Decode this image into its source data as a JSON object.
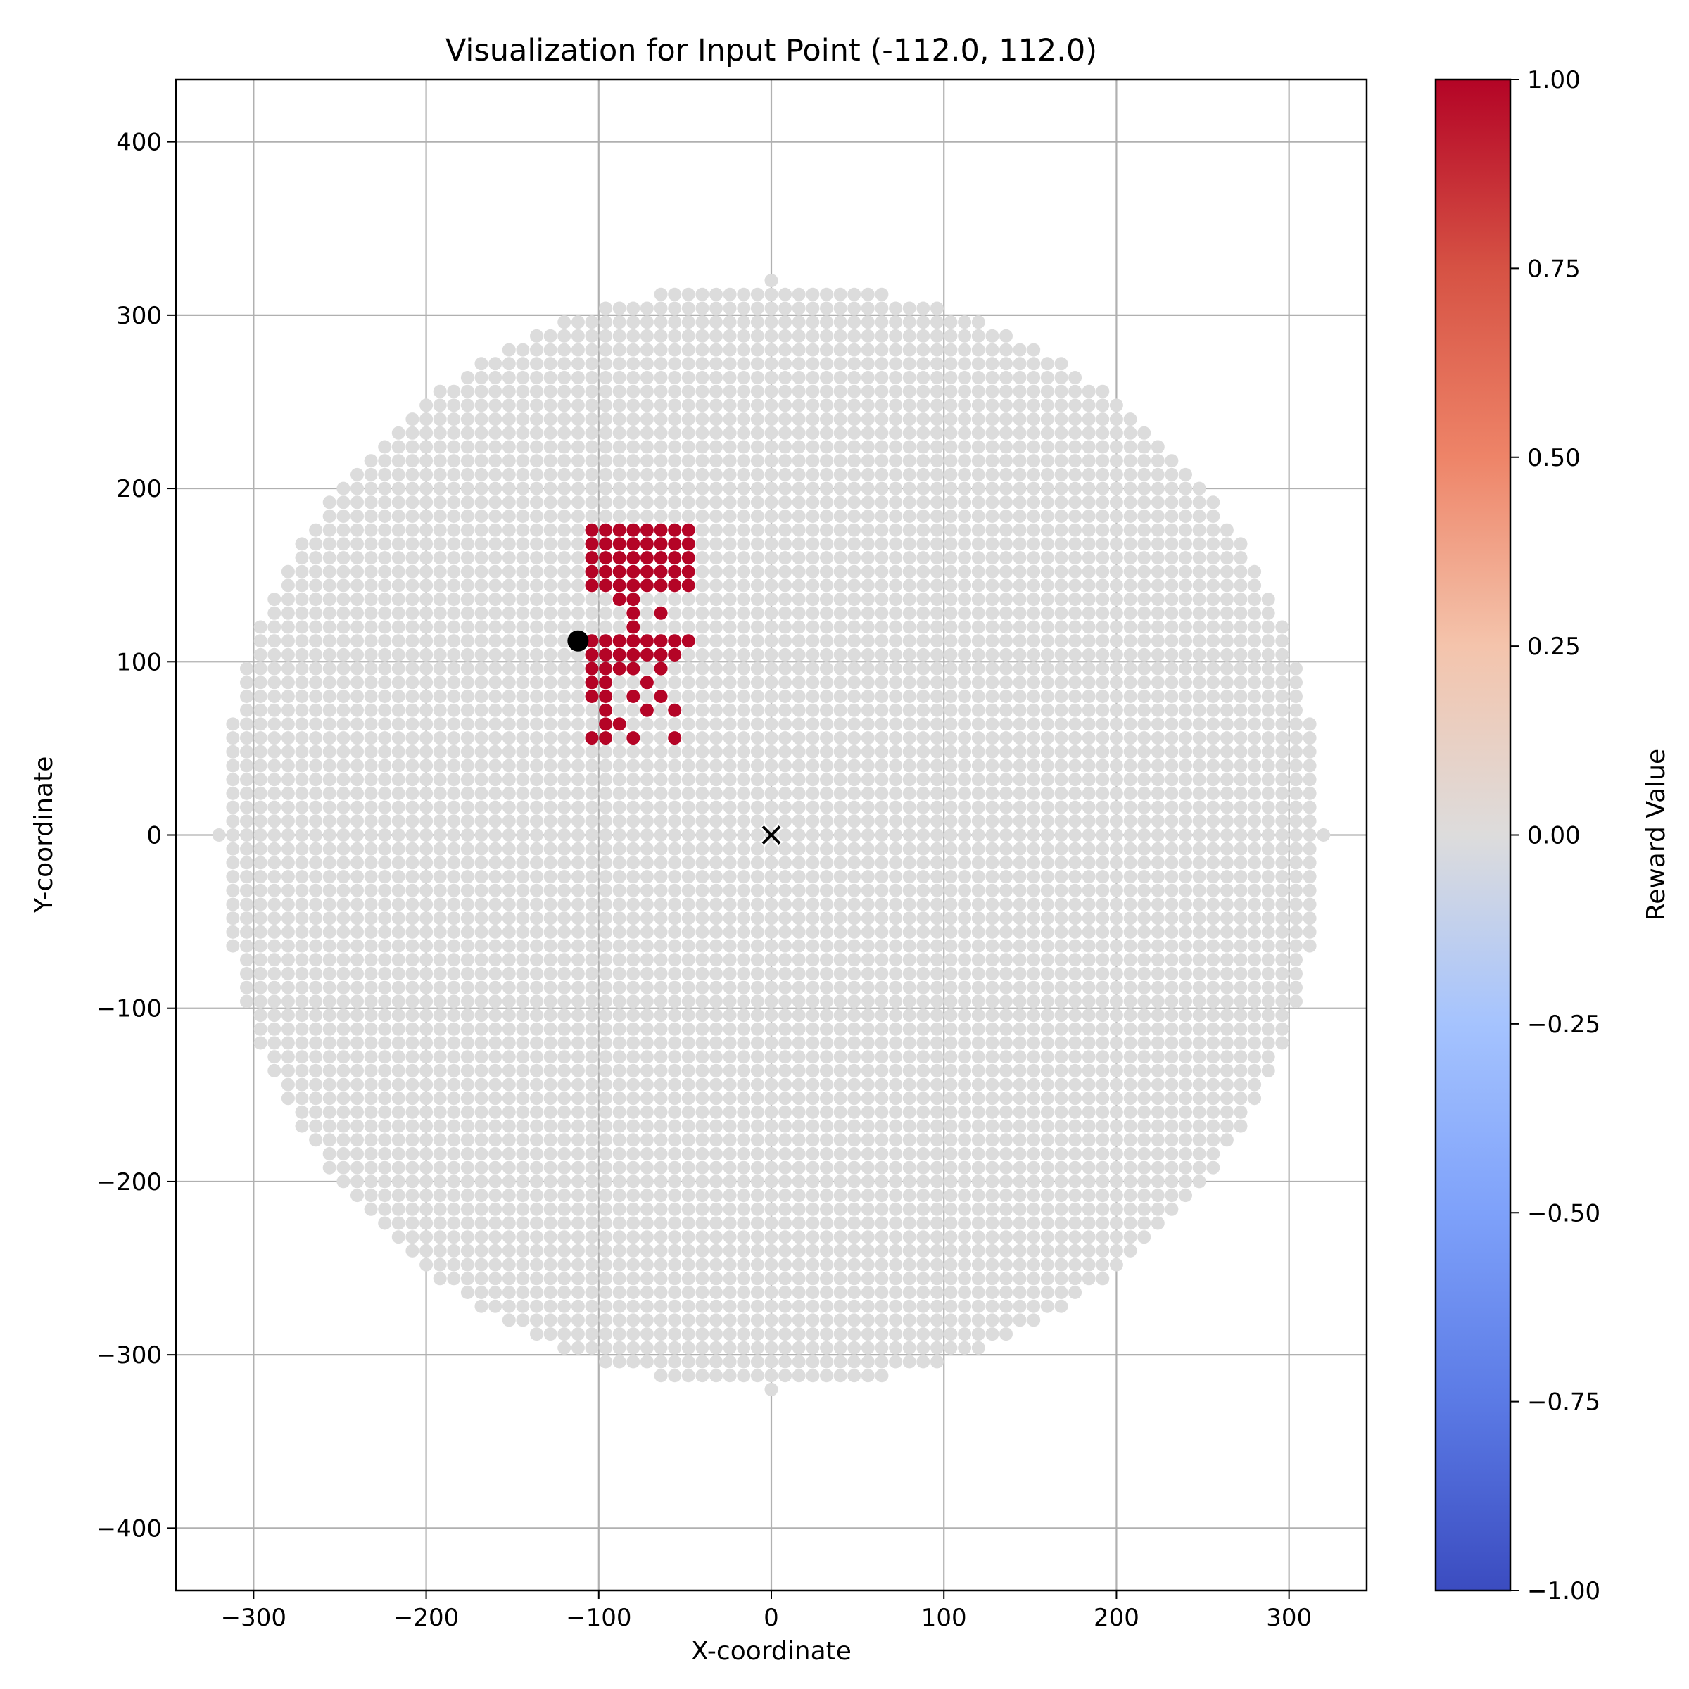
{
  "chart_data": {
    "type": "scatter",
    "title": "Visualization for Input Point (-112.0, 112.0)",
    "xlabel": "X-coordinate",
    "ylabel": "Y-coordinate",
    "xlim": [
      -345,
      345
    ],
    "ylim": [
      -436,
      436
    ],
    "x_ticks": [
      -300,
      -200,
      -100,
      0,
      100,
      200,
      300
    ],
    "y_ticks": [
      -400,
      -300,
      -200,
      -100,
      0,
      100,
      200,
      300,
      400
    ],
    "x_tick_labels": [
      "−300",
      "−200",
      "−100",
      "0",
      "100",
      "200",
      "300"
    ],
    "y_tick_labels": [
      "−400",
      "−300",
      "−200",
      "−100",
      "0",
      "100",
      "200",
      "300",
      "400"
    ],
    "grid": true,
    "grid_points": {
      "description_value": "reward 0 for all grid points inside the disc except the highlighted region",
      "step": 8,
      "radius": 320,
      "reward": 0.0,
      "color": "#dcdcdc"
    },
    "highlight_points": {
      "reward": 1.0,
      "color": "#b40426",
      "points": [
        [
          -104,
          176
        ],
        [
          -96,
          176
        ],
        [
          -88,
          176
        ],
        [
          -80,
          176
        ],
        [
          -72,
          176
        ],
        [
          -64,
          176
        ],
        [
          -56,
          176
        ],
        [
          -48,
          176
        ],
        [
          -104,
          168
        ],
        [
          -96,
          168
        ],
        [
          -88,
          168
        ],
        [
          -80,
          168
        ],
        [
          -72,
          168
        ],
        [
          -64,
          168
        ],
        [
          -56,
          168
        ],
        [
          -48,
          168
        ],
        [
          -104,
          160
        ],
        [
          -96,
          160
        ],
        [
          -88,
          160
        ],
        [
          -80,
          160
        ],
        [
          -72,
          160
        ],
        [
          -64,
          160
        ],
        [
          -56,
          160
        ],
        [
          -48,
          160
        ],
        [
          -104,
          152
        ],
        [
          -96,
          152
        ],
        [
          -88,
          152
        ],
        [
          -80,
          152
        ],
        [
          -72,
          152
        ],
        [
          -64,
          152
        ],
        [
          -56,
          152
        ],
        [
          -48,
          152
        ],
        [
          -104,
          144
        ],
        [
          -96,
          144
        ],
        [
          -88,
          144
        ],
        [
          -80,
          144
        ],
        [
          -72,
          144
        ],
        [
          -64,
          144
        ],
        [
          -56,
          144
        ],
        [
          -48,
          144
        ],
        [
          -88,
          136
        ],
        [
          -80,
          136
        ],
        [
          -80,
          128
        ],
        [
          -64,
          128
        ],
        [
          -80,
          120
        ],
        [
          -104,
          112
        ],
        [
          -96,
          112
        ],
        [
          -88,
          112
        ],
        [
          -80,
          112
        ],
        [
          -72,
          112
        ],
        [
          -64,
          112
        ],
        [
          -56,
          112
        ],
        [
          -48,
          112
        ],
        [
          -104,
          104
        ],
        [
          -96,
          104
        ],
        [
          -88,
          104
        ],
        [
          -80,
          104
        ],
        [
          -72,
          104
        ],
        [
          -64,
          104
        ],
        [
          -56,
          104
        ],
        [
          -104,
          96
        ],
        [
          -96,
          96
        ],
        [
          -88,
          96
        ],
        [
          -80,
          96
        ],
        [
          -64,
          96
        ],
        [
          -104,
          88
        ],
        [
          -96,
          88
        ],
        [
          -72,
          88
        ],
        [
          -104,
          80
        ],
        [
          -96,
          80
        ],
        [
          -80,
          80
        ],
        [
          -64,
          80
        ],
        [
          -96,
          72
        ],
        [
          -72,
          72
        ],
        [
          -56,
          72
        ],
        [
          -96,
          64
        ],
        [
          -88,
          64
        ],
        [
          -104,
          56
        ],
        [
          -96,
          56
        ],
        [
          -80,
          56
        ],
        [
          -56,
          56
        ]
      ]
    },
    "input_point": {
      "x": -112.0,
      "y": 112.0,
      "color": "#000000",
      "marker": "circle"
    },
    "center_marker": {
      "x": 0,
      "y": 0,
      "color": "#000000",
      "marker": "x"
    },
    "colorbar": {
      "label": "Reward Value",
      "colormap": "coolwarm",
      "range": [
        -1.0,
        1.0
      ],
      "ticks": [
        1.0,
        0.75,
        0.5,
        0.25,
        0.0,
        -0.25,
        -0.5,
        -0.75,
        -1.0
      ],
      "tick_labels": [
        "1.00",
        "0.75",
        "0.50",
        "0.25",
        "0.00",
        "−0.25",
        "−0.50",
        "−0.75",
        "−1.00"
      ]
    }
  }
}
